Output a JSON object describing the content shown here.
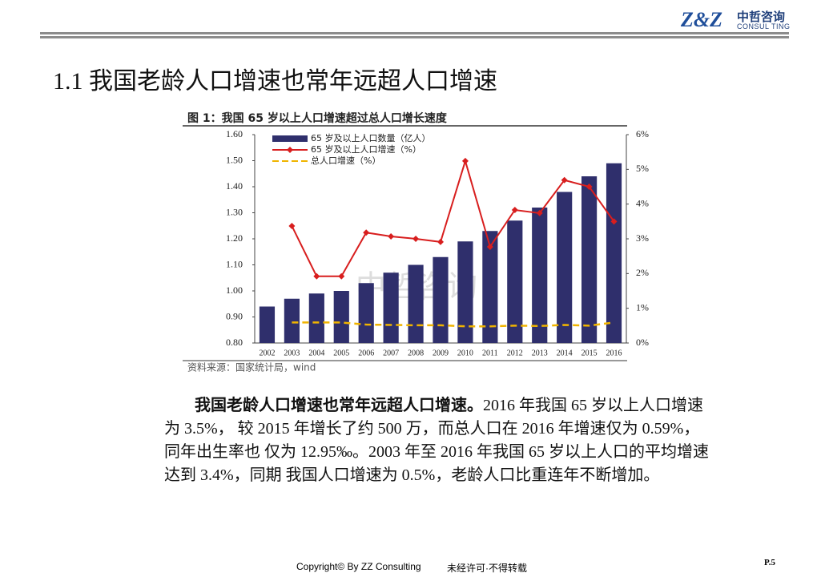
{
  "header": {
    "logo": "Z&Z",
    "brand": "中哲咨询",
    "brand_en": "CONSUL TING"
  },
  "title": "1.1 我国老龄人口增速也常年远超人口增速",
  "chart_data": {
    "type": "bar",
    "title": "图 1：我国 65 岁以上人口增速超过总人口增长速度",
    "source": "资料来源：国家统计局，wind",
    "watermark": "中哲咨询",
    "categories": [
      "2002",
      "2003",
      "2004",
      "2005",
      "2006",
      "2007",
      "2008",
      "2009",
      "2010",
      "2011",
      "2012",
      "2013",
      "2014",
      "2015",
      "2016"
    ],
    "series": [
      {
        "name": "65 岁及以上人口数量（亿人）",
        "type": "bar",
        "color": "#2f2f6c",
        "values": [
          0.94,
          0.97,
          0.99,
          1.0,
          1.03,
          1.07,
          1.1,
          1.13,
          1.19,
          1.23,
          1.27,
          1.32,
          1.38,
          1.44,
          1.49
        ]
      },
      {
        "name": "65 岁及以上人口增速（%）",
        "type": "line",
        "axis": "y2",
        "color": "#d81e1e",
        "marker": "diamond",
        "values": [
          null,
          3.37,
          1.92,
          1.92,
          3.18,
          3.07,
          3.0,
          2.91,
          5.24,
          2.77,
          3.83,
          3.74,
          4.69,
          4.5,
          3.5
        ]
      },
      {
        "name": "总人口增速（%）",
        "type": "line",
        "axis": "y2",
        "color": "#f0b400",
        "dashed": true,
        "values": [
          null,
          0.59,
          0.59,
          0.59,
          0.53,
          0.52,
          0.51,
          0.51,
          0.48,
          0.48,
          0.5,
          0.49,
          0.52,
          0.5,
          0.59
        ]
      }
    ],
    "ylim": [
      0.8,
      1.6
    ],
    "yticks": [
      {
        "value": 0.8,
        "label": "0.80"
      },
      {
        "value": 0.9,
        "label": "0.90"
      },
      {
        "value": 1.0,
        "label": "1.00"
      },
      {
        "value": 1.1,
        "label": "1.10"
      },
      {
        "value": 1.2,
        "label": "1.20"
      },
      {
        "value": 1.3,
        "label": "1.30"
      },
      {
        "value": 1.4,
        "label": "1.40"
      },
      {
        "value": 1.5,
        "label": "1.50"
      },
      {
        "value": 1.6,
        "label": "1.60"
      }
    ],
    "y2lim": [
      0,
      6
    ],
    "y2ticks": [
      {
        "value": 0,
        "label": "0%"
      },
      {
        "value": 1,
        "label": "1%"
      },
      {
        "value": 2,
        "label": "2%"
      },
      {
        "value": 3,
        "label": "3%"
      },
      {
        "value": 4,
        "label": "4%"
      },
      {
        "value": 5,
        "label": "5%"
      },
      {
        "value": 6,
        "label": "6%"
      }
    ],
    "legend": "upper left"
  },
  "body": {
    "lead": "我国老龄人口增速也常年远超人口增速。",
    "text": "2016 年我国 65 岁以上人口增速为 3.5%， 较 2015 年增长了约 500 万，而总人口在 2016 年增速仅为 0.59%，同年出生率也 仅为 12.95‰。2003 年至 2016 年我国 65 岁以上人口的平均增速达到 3.4%，同期 我国人口增速为 0.5%，老龄人口比重连年不断增加。"
  },
  "footer": {
    "copyright": "Copyright© By  ZZ Consulting",
    "notice": "未经许可·不得转载",
    "page": "P.5"
  }
}
